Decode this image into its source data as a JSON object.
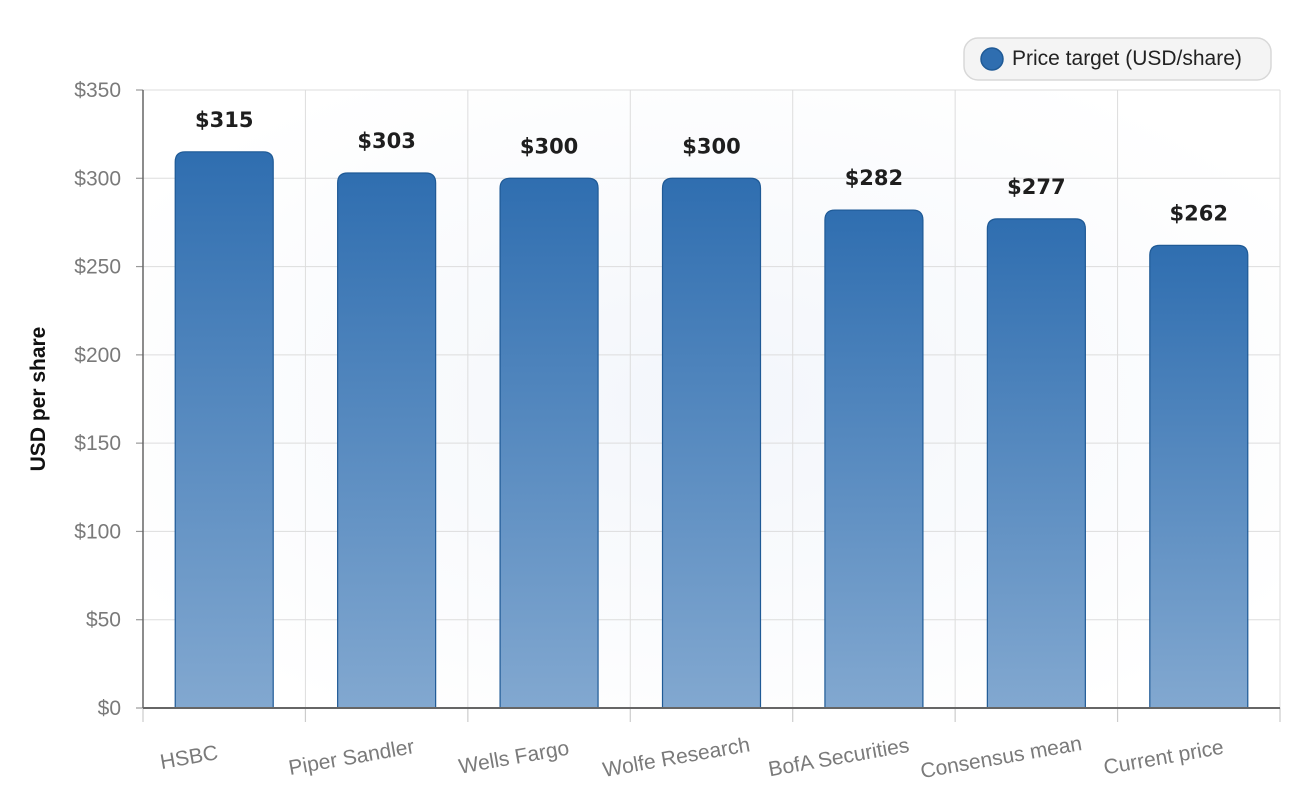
{
  "chart_data": {
    "type": "bar",
    "categories": [
      "HSBC",
      "Piper Sandler",
      "Wells Fargo",
      "Wolfe Research",
      "BofA Securities",
      "Consensus mean",
      "Current price"
    ],
    "series": [
      {
        "name": "Price target (USD/share)",
        "values": [
          315,
          303,
          300,
          300,
          282,
          277,
          262
        ],
        "data_labels": [
          "$315",
          "$303",
          "$300",
          "$300",
          "$282",
          "$277",
          "$262"
        ]
      }
    ],
    "title": "",
    "xlabel": "",
    "ylabel": "USD per share",
    "ylim": [
      0,
      350
    ],
    "yticks": [
      0,
      50,
      100,
      150,
      200,
      250,
      300,
      350
    ],
    "ytick_labels": [
      "$0",
      "$50",
      "$100",
      "$150",
      "$200",
      "$250",
      "$300",
      "$350"
    ],
    "grid": true,
    "legend_position": "top-right",
    "bar_color": "#2f6eb0",
    "bar_color_light": "#82a8d0"
  }
}
